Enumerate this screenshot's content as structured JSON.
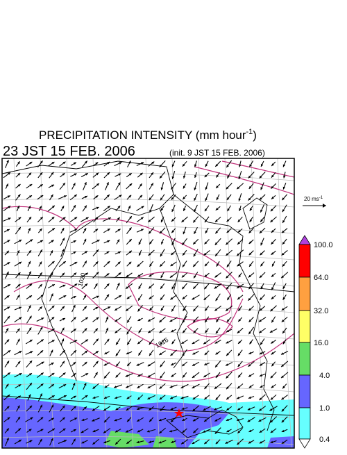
{
  "header": {
    "title_main": "PRECIPITATION INTENSITY (mm hour",
    "title_exponent": "-1",
    "title_close": ")",
    "valid_time": "23 JST 15 FEB. 2006",
    "init_time": "(init. 9 JST 15 FEB. 2006)"
  },
  "map": {
    "isobar_labels": [
      "1020",
      "1016"
    ]
  },
  "wind_scale": {
    "label": "20 ms",
    "exponent": "-1"
  },
  "colorbar": {
    "labels": [
      "100.0",
      "64.0",
      "32.0",
      "16.0",
      "4.0",
      "1.0",
      "0.4"
    ]
  }
}
